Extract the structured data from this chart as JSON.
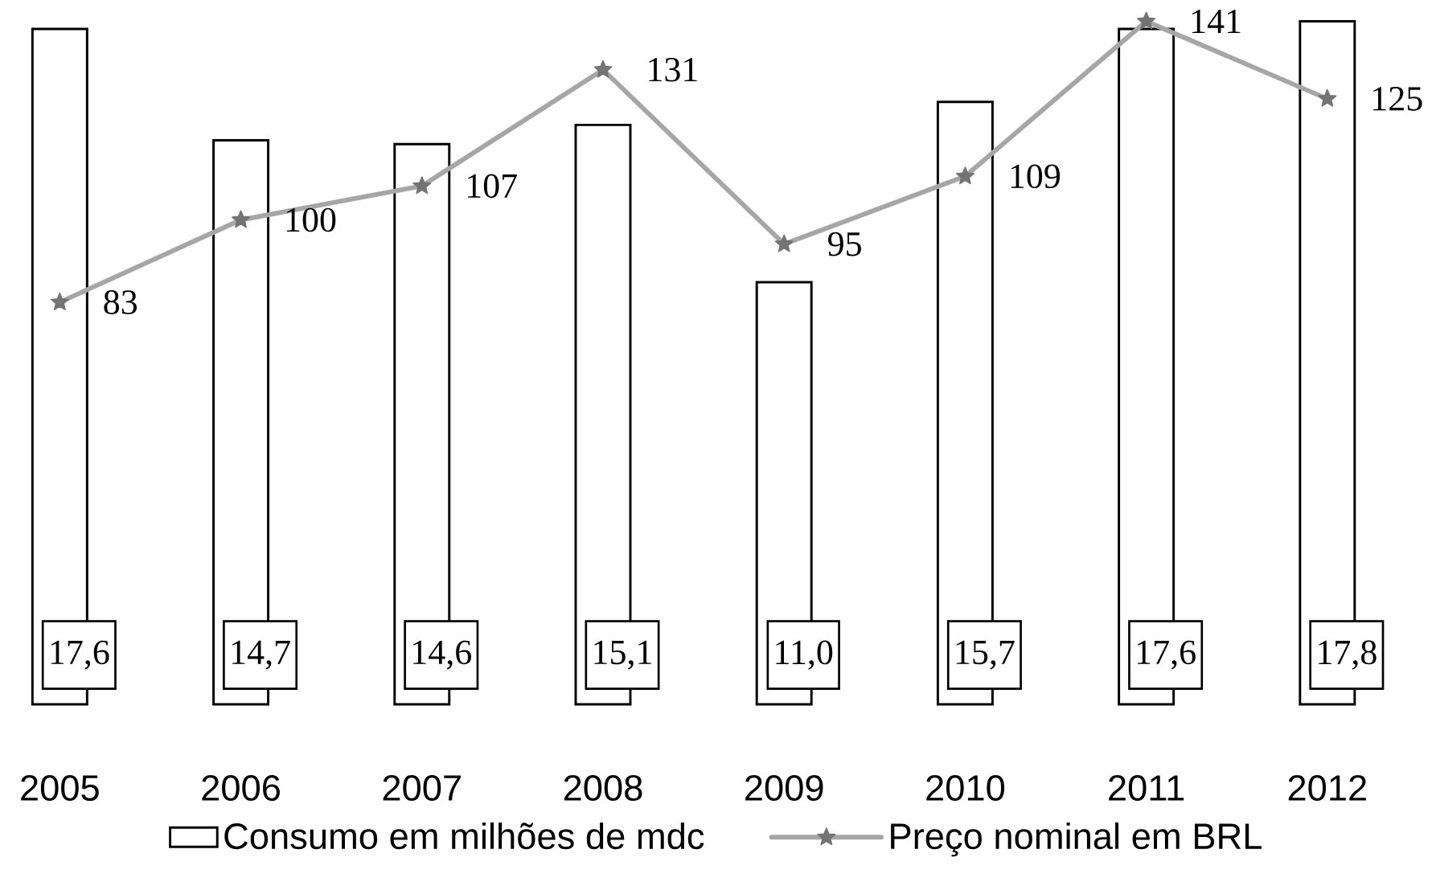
{
  "chart_data": {
    "type": "bar",
    "categories": [
      "2005",
      "2006",
      "2007",
      "2008",
      "2009",
      "2010",
      "2011",
      "2012"
    ],
    "series": [
      {
        "name": "Consumo em milhões de mdc",
        "color": "#ffffff",
        "values": [
          17.6,
          14.7,
          14.6,
          15.1,
          11.0,
          15.7,
          17.6,
          17.8
        ],
        "value_labels": [
          "17,6",
          "14,7",
          "14,6",
          "15,1",
          "11,0",
          "15,7",
          "17,6",
          "17,8"
        ]
      },
      {
        "name": "Preço nominal em BRL",
        "type": "line",
        "axis": "y2",
        "color": "#a6a6a6",
        "values": [
          83,
          100,
          107,
          131,
          95,
          109,
          141,
          125
        ],
        "value_labels": [
          "83",
          "100",
          "107",
          "131",
          "95",
          "109",
          "141",
          "125"
        ]
      }
    ],
    "tick_labels": "x",
    "legend": "bottom",
    "marker": "star"
  }
}
